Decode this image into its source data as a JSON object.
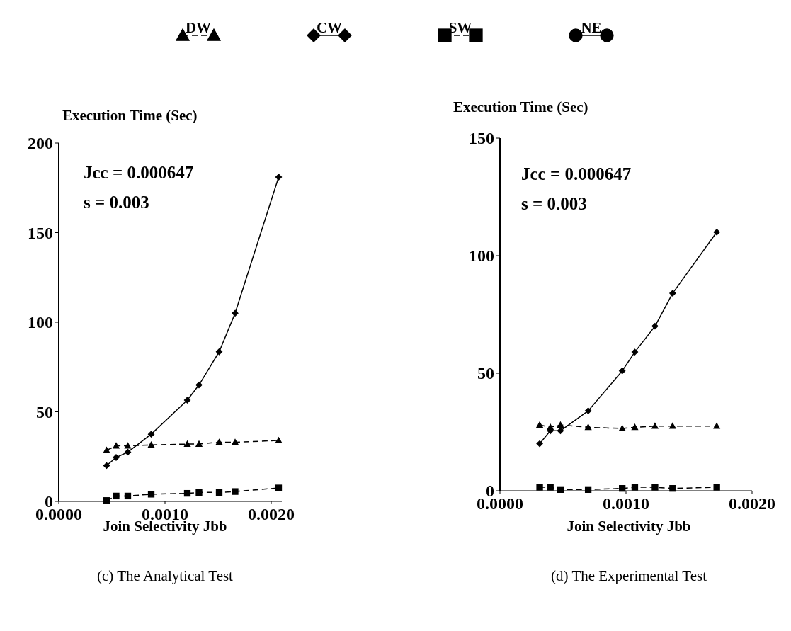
{
  "chart_data": [
    {
      "type": "line",
      "title": "(c) The Analytical Test",
      "xlabel": "Join Selectivity Jbb",
      "ylabel": "Execution Time (Sec)",
      "annotations": [
        "Jcc = 0.000647",
        "s = 0.003"
      ],
      "x": [
        0.00045,
        0.00054,
        0.00065,
        0.00087,
        0.00121,
        0.00132,
        0.00151,
        0.00166,
        0.00207
      ],
      "xlim": [
        0,
        0.0021
      ],
      "xticks": [
        {
          "value": 0,
          "label": "0.0000"
        },
        {
          "value": 0.001,
          "label": "0.0010"
        },
        {
          "value": 0.002,
          "label": "0.0020"
        }
      ],
      "ylim": [
        0,
        200
      ],
      "yticks": [
        0,
        50,
        100,
        150,
        200
      ],
      "grid": false,
      "legend": "top",
      "series": [
        {
          "name": "DW",
          "color": "#000000",
          "marker": "triangle",
          "line_style": "dashed",
          "values": [
            28.5,
            31,
            31,
            31.5,
            32,
            32,
            33,
            33,
            34
          ]
        },
        {
          "name": "CW",
          "color": "#000000",
          "marker": "diamond",
          "line_style": "solid",
          "values": [
            20,
            24.5,
            27.5,
            37.5,
            56.5,
            65,
            83.5,
            105,
            181
          ]
        },
        {
          "name": "SW",
          "color": "#000000",
          "marker": "square",
          "line_style": "dashed",
          "values": [
            0.5,
            3,
            3,
            4,
            4.5,
            5,
            5,
            5.5,
            7.5
          ]
        },
        {
          "name": "NE",
          "color": "#000000",
          "marker": "circle",
          "line_style": "solid",
          "values": [
            null,
            null,
            null,
            null,
            null,
            null,
            null,
            null,
            null
          ]
        }
      ]
    },
    {
      "type": "line",
      "title": "(d) The Experimental Test",
      "xlabel": "Join Selectivity Jbb",
      "ylabel": "Execution Time (Sec)",
      "annotations": [
        "Jcc = 0.000647",
        "s = 0.003"
      ],
      "x": [
        0.000315,
        0.0004,
        0.00048,
        0.0007,
        0.00097,
        0.00107,
        0.00123,
        0.00137,
        0.00172
      ],
      "xlim": [
        0,
        0.002
      ],
      "xticks": [
        {
          "value": 0,
          "label": "0.0000"
        },
        {
          "value": 0.001,
          "label": "0.0010"
        },
        {
          "value": 0.002,
          "label": "0.0020"
        }
      ],
      "ylim": [
        0,
        150
      ],
      "yticks": [
        0,
        50,
        100,
        150
      ],
      "grid": false,
      "legend": false,
      "series": [
        {
          "color": "#000000",
          "marker": "triangle",
          "line_style": "dashed",
          "values": [
            28,
            27,
            28,
            27,
            26.5,
            27,
            27.5,
            27.5,
            27.5
          ]
        },
        {
          "color": "#000000",
          "marker": "diamond",
          "line_style": "solid",
          "values": [
            20,
            25.5,
            25.5,
            34,
            51,
            59,
            70,
            84,
            110
          ]
        },
        {
          "color": "#000000",
          "marker": "square",
          "line_style": "dashed",
          "values": [
            1.5,
            1.5,
            0.5,
            0.5,
            1,
            1.5,
            1.5,
            1,
            1.5
          ]
        }
      ]
    }
  ]
}
